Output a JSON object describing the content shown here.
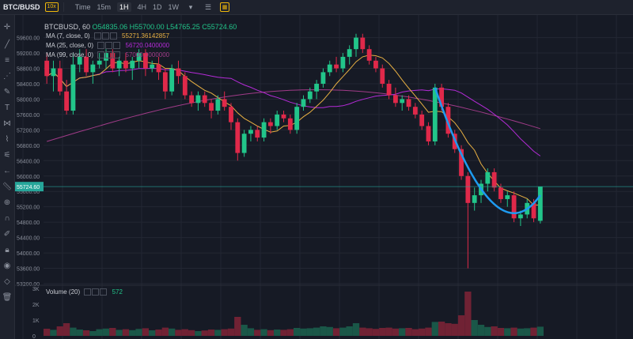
{
  "toolbar": {
    "pair": "BTC/BUSD",
    "leverage": "10x",
    "time_label": "Time",
    "intervals": [
      "15m",
      "1H",
      "4H",
      "1D",
      "1W"
    ],
    "active_interval": "1H"
  },
  "legend": {
    "symbol": "BTCBUSD, 60",
    "open": "O54835.06",
    "high": "H55700.00",
    "low": "L54765.25",
    "close": "C55724.60",
    "ma7_label": "MA (7, close, 0)",
    "ma7_value": "55271.36142857",
    "ma25_label": "MA (25, close, 0)",
    "ma25_value": "56720.0400000",
    "ma99_label": "MA (99, close, 0)",
    "ma99_value": "57000.0000000",
    "volume_label": "Volume (20)",
    "volume_value": "572"
  },
  "colors": {
    "up": "#22c58a",
    "down": "#e0294a",
    "ma7": "#e8b043",
    "ma25": "#b52bd8",
    "ma99": "#a03b88",
    "drawing": "#1e9bf0",
    "price_line": "#26a69a"
  },
  "chart_data": {
    "type": "candlestick",
    "y_ticks": [
      "59600.00",
      "59200.00",
      "58800.00",
      "58400.00",
      "58000.00",
      "57600.00",
      "57200.00",
      "56800.00",
      "56400.00",
      "56000.00",
      "55600.00",
      "55200.00",
      "54800.00",
      "54400.00",
      "54000.00",
      "53600.00",
      "53200.00"
    ],
    "ylim": [
      53200,
      59900
    ],
    "current_price": "55724.60",
    "volume_ticks": [
      "3K",
      "2K",
      "1K",
      "0"
    ],
    "volume_ylim": [
      0,
      3000
    ],
    "candles": [
      [
        59000,
        59200,
        58400,
        58600
      ],
      [
        58600,
        59000,
        58200,
        58800
      ],
      [
        58800,
        59000,
        58100,
        58200
      ],
      [
        58200,
        58500,
        57600,
        57700
      ],
      [
        57700,
        59200,
        57600,
        58900
      ],
      [
        58900,
        59300,
        58700,
        59100
      ],
      [
        59100,
        59300,
        58600,
        58700
      ],
      [
        58700,
        59000,
        58400,
        58900
      ],
      [
        58900,
        59200,
        58800,
        59000
      ],
      [
        59000,
        59300,
        58800,
        59200
      ],
      [
        59200,
        59300,
        58700,
        58800
      ],
      [
        58800,
        59100,
        58600,
        59000
      ],
      [
        59000,
        59200,
        58700,
        58800
      ],
      [
        58800,
        59100,
        58500,
        59000
      ],
      [
        59000,
        59300,
        58800,
        59200
      ],
      [
        59200,
        59300,
        58600,
        58800
      ],
      [
        58800,
        59000,
        58700,
        58900
      ],
      [
        58900,
        59100,
        58500,
        58700
      ],
      [
        58700,
        58800,
        58000,
        58200
      ],
      [
        58200,
        58900,
        58100,
        58800
      ],
      [
        58800,
        59000,
        58400,
        58600
      ],
      [
        58600,
        58700,
        58000,
        58100
      ],
      [
        58100,
        58200,
        57800,
        57900
      ],
      [
        57900,
        58200,
        57700,
        58100
      ],
      [
        58100,
        58200,
        57800,
        57900
      ],
      [
        57900,
        58000,
        57500,
        57700
      ],
      [
        57700,
        58100,
        57600,
        58000
      ],
      [
        58000,
        58200,
        57700,
        57800
      ],
      [
        57800,
        57900,
        57200,
        57400
      ],
      [
        57400,
        57500,
        56400,
        56600
      ],
      [
        56600,
        57200,
        56500,
        57100
      ],
      [
        57100,
        57300,
        56900,
        57200
      ],
      [
        57200,
        57300,
        56900,
        57000
      ],
      [
        57000,
        57500,
        56900,
        57400
      ],
      [
        57400,
        57500,
        57100,
        57300
      ],
      [
        57300,
        57700,
        57200,
        57600
      ],
      [
        57600,
        57700,
        57400,
        57500
      ],
      [
        57500,
        57600,
        57100,
        57200
      ],
      [
        57200,
        57900,
        57100,
        57800
      ],
      [
        57800,
        58100,
        57700,
        58000
      ],
      [
        58000,
        58300,
        57900,
        58200
      ],
      [
        58200,
        58500,
        58000,
        58400
      ],
      [
        58400,
        58800,
        58300,
        58700
      ],
      [
        58700,
        59000,
        58600,
        58900
      ],
      [
        58900,
        59100,
        58700,
        58800
      ],
      [
        58800,
        59200,
        58700,
        59100
      ],
      [
        59100,
        59400,
        58900,
        59300
      ],
      [
        59300,
        59700,
        59100,
        59600
      ],
      [
        59600,
        59700,
        59200,
        59300
      ],
      [
        59300,
        59400,
        58900,
        59000
      ],
      [
        59000,
        59100,
        58700,
        58800
      ],
      [
        58800,
        58900,
        58300,
        58400
      ],
      [
        58400,
        58500,
        58000,
        58100
      ],
      [
        58100,
        58300,
        57800,
        57900
      ],
      [
        57900,
        58100,
        57700,
        58000
      ],
      [
        58000,
        58100,
        57700,
        57800
      ],
      [
        57800,
        57900,
        57500,
        57600
      ],
      [
        57600,
        57700,
        57200,
        57300
      ],
      [
        57300,
        57400,
        56800,
        56900
      ],
      [
        56900,
        58400,
        56800,
        58300
      ],
      [
        58300,
        58400,
        57700,
        57800
      ],
      [
        57800,
        57900,
        57000,
        57100
      ],
      [
        57100,
        57200,
        56600,
        56700
      ],
      [
        56700,
        56800,
        55900,
        56000
      ],
      [
        56000,
        56100,
        53600,
        55300
      ],
      [
        55300,
        55700,
        55100,
        55500
      ],
      [
        55500,
        55900,
        55300,
        55800
      ],
      [
        55800,
        56200,
        55600,
        56100
      ],
      [
        56100,
        56200,
        55600,
        55700
      ],
      [
        55700,
        55800,
        55300,
        55400
      ],
      [
        55400,
        55600,
        55200,
        55500
      ],
      [
        55500,
        55600,
        54800,
        54900
      ],
      [
        54900,
        55100,
        54700,
        55000
      ],
      [
        55000,
        55400,
        54900,
        55300
      ],
      [
        55300,
        55400,
        54800,
        54900
      ],
      [
        54835,
        55700,
        54765,
        55724
      ]
    ],
    "volumes": [
      450,
      380,
      600,
      800,
      520,
      400,
      350,
      300,
      420,
      460,
      500,
      380,
      420,
      360,
      440,
      480,
      350,
      400,
      520,
      460,
      380,
      420,
      360,
      300,
      340,
      400,
      380,
      420,
      460,
      1200,
      700,
      480,
      380,
      420,
      360,
      400,
      380,
      420,
      500,
      460,
      480,
      520,
      600,
      560,
      480,
      520,
      600,
      800,
      520,
      480,
      440,
      500,
      520,
      460,
      480,
      500,
      420,
      460,
      520,
      880,
      900,
      800,
      760,
      1300,
      2800,
      1000,
      700,
      560,
      600,
      500,
      480,
      520,
      460,
      480,
      520,
      580
    ]
  }
}
